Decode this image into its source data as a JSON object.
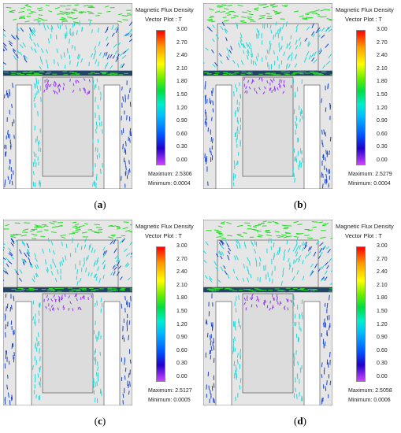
{
  "legend": {
    "title": "Magnetic Flux Density",
    "subtitle": "Vector Plot : T",
    "ticks": [
      "3.00",
      "2.70",
      "2.40",
      "2.10",
      "1.80",
      "1.50",
      "1.20",
      "0.90",
      "0.60",
      "0.30",
      "0.00"
    ]
  },
  "panels": [
    {
      "label": "a",
      "maximum": "Maximum: 2.5306",
      "minimum": "Minimum: 0.0004"
    },
    {
      "label": "b",
      "maximum": "Maximum: 2.5279",
      "minimum": "Minimum: 0.0004"
    },
    {
      "label": "c",
      "maximum": "Maximum: 2.5127",
      "minimum": "Minimum: 0.0005"
    },
    {
      "label": "d",
      "maximum": "Maximum: 2.5058",
      "minimum": "Minimum: 0.0006"
    }
  ],
  "colors": {
    "core_fill": "#e6e6e6",
    "outline": "#444444",
    "green": "#22dd22",
    "cyan": "#22d8d8",
    "blue": "#1a44cc",
    "purple": "#9933ff",
    "plate": "#224466"
  }
}
